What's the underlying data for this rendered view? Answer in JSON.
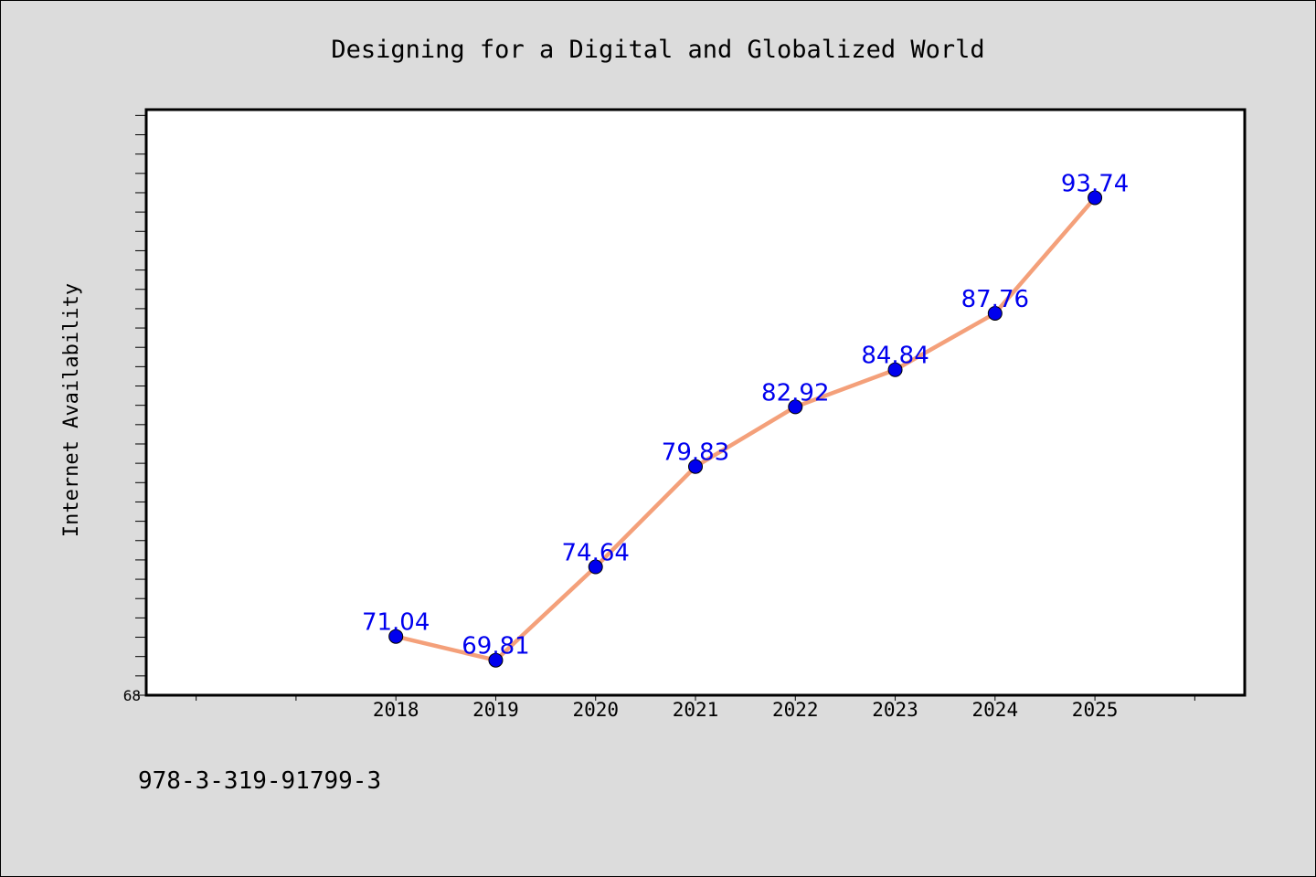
{
  "chart_data": {
    "type": "line",
    "title": "Designing for a Digital and Globalized World",
    "xlabel": "",
    "ylabel": "Internet Availability",
    "categories": [
      "2018",
      "2019",
      "2020",
      "2021",
      "2022",
      "2023",
      "2024",
      "2025"
    ],
    "series": [
      {
        "values": [
          71.04,
          69.81,
          74.64,
          79.83,
          82.92,
          84.84,
          87.76,
          93.74
        ],
        "labels": [
          "71.04",
          "69.81",
          "74.64",
          "79.83",
          "82.92",
          "84.84",
          "87.76",
          "93.74"
        ],
        "line_color": "#f4a07a",
        "marker_color": "#0000ee",
        "label_color": "#0000ee"
      }
    ],
    "x_range": [
      2015.5,
      2026.5
    ],
    "ylim": [
      68,
      98.3
    ],
    "y_tick_labels": [
      "68"
    ],
    "grid": false,
    "legend": "none"
  },
  "footnote": "978-3-319-91799-3",
  "colors": {
    "background": "#dcdcdc",
    "plot_background": "#ffffff",
    "axis": "#000000"
  }
}
